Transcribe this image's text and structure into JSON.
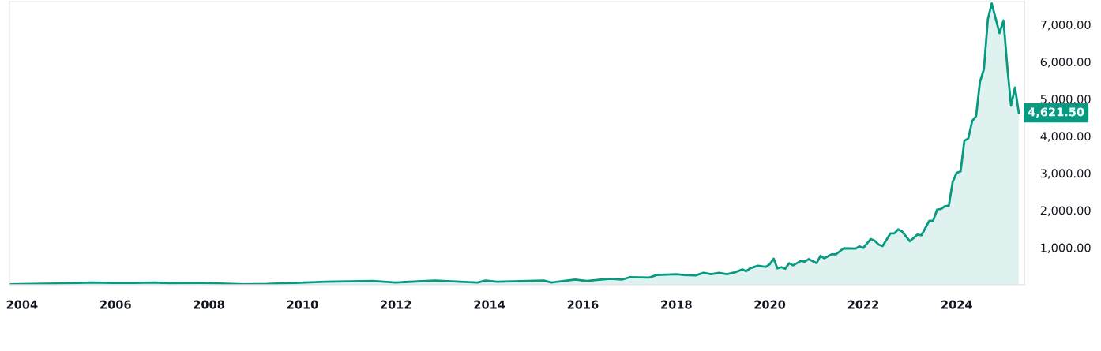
{
  "chart_data": {
    "type": "area",
    "x": [
      "2003-10",
      "2004-10",
      "2005-07",
      "2005-12",
      "2006-06",
      "2006-11",
      "2007-03",
      "2007-11",
      "2008-10",
      "2009-04",
      "2009-11",
      "2010-07",
      "2011-07",
      "2012-01",
      "2012-11",
      "2013-10",
      "2013-12",
      "2014-03",
      "2015-03",
      "2015-05",
      "2015-11",
      "2016-02",
      "2016-08",
      "2016-11",
      "2017-01",
      "2017-06",
      "2017-08",
      "2018-01",
      "2018-03",
      "2018-06",
      "2018-08",
      "2018-10",
      "2018-12",
      "2019-02",
      "2019-04",
      "2019-06",
      "2019-07",
      "2019-08",
      "2019-10",
      "2019-12",
      "2020-01",
      "2020-02",
      "2020-03",
      "2020-04",
      "2020-05",
      "2020-06",
      "2020-07",
      "2020-09",
      "2020-10",
      "2020-11",
      "2021-01",
      "2021-02",
      "2021-03",
      "2021-05",
      "2021-06",
      "2021-08",
      "2021-11",
      "2021-12",
      "2022-01",
      "2022-03",
      "2022-04",
      "2022-05",
      "2022-06",
      "2022-08",
      "2022-09",
      "2022-10",
      "2022-11",
      "2023-01",
      "2023-03",
      "2023-04",
      "2023-06",
      "2023-07",
      "2023-08",
      "2023-09",
      "2023-10",
      "2023-11",
      "2023-12",
      "2024-01",
      "2024-02",
      "2024-03",
      "2024-04",
      "2024-05",
      "2024-06",
      "2024-07",
      "2024-08",
      "2024-09",
      "2024-10",
      "2024-12",
      "2025-01",
      "2025-02",
      "2025-03",
      "2025-04",
      "2025-05"
    ],
    "series": [
      {
        "color": "#089981",
        "values": [
          10,
          30,
          60,
          50,
          50,
          60,
          40,
          50,
          10,
          20,
          50,
          80,
          100,
          60,
          110,
          60,
          110,
          80,
          110,
          60,
          140,
          100,
          160,
          140,
          200,
          190,
          260,
          280,
          260,
          250,
          320,
          280,
          320,
          280,
          330,
          410,
          360,
          440,
          510,
          480,
          550,
          700,
          440,
          470,
          430,
          580,
          520,
          640,
          620,
          690,
          580,
          780,
          710,
          820,
          820,
          980,
          970,
          1030,
          990,
          1230,
          1180,
          1080,
          1040,
          1380,
          1380,
          1490,
          1430,
          1170,
          1350,
          1330,
          1720,
          1720,
          2020,
          2040,
          2110,
          2130,
          2770,
          3010,
          3050,
          3870,
          3940,
          4400,
          4540,
          5460,
          5800,
          7150,
          7570,
          6770,
          7110,
          5820,
          4820,
          5310,
          4621.5
        ]
      }
    ],
    "xlim": [
      "2003-09-25",
      "2025-06-15"
    ],
    "xticks": [
      {
        "value": "2004",
        "label": "2004"
      },
      {
        "value": "2006",
        "label": "2006"
      },
      {
        "value": "2008",
        "label": "2008"
      },
      {
        "value": "2010",
        "label": "2010"
      },
      {
        "value": "2012",
        "label": "2012"
      },
      {
        "value": "2014",
        "label": "2014"
      },
      {
        "value": "2016",
        "label": "2016"
      },
      {
        "value": "2018",
        "label": "2018"
      },
      {
        "value": "2020",
        "label": "2020"
      },
      {
        "value": "2022",
        "label": "2022"
      },
      {
        "value": "2024",
        "label": "2024"
      }
    ],
    "ylim": [
      0,
      7620
    ],
    "yticks": [
      {
        "value": 1000,
        "label": "1,000.00"
      },
      {
        "value": 2000,
        "label": "2,000.00"
      },
      {
        "value": 3000,
        "label": "3,000.00"
      },
      {
        "value": 4000,
        "label": "4,000.00"
      },
      {
        "value": 5000,
        "label": "5,000.00"
      },
      {
        "value": 6000,
        "label": "6,000.00"
      },
      {
        "value": 7000,
        "label": "7,000.00"
      }
    ],
    "annotations": [
      "4,621.50"
    ],
    "grid": false,
    "legend": false,
    "line_style": "solid",
    "marker": "none"
  }
}
